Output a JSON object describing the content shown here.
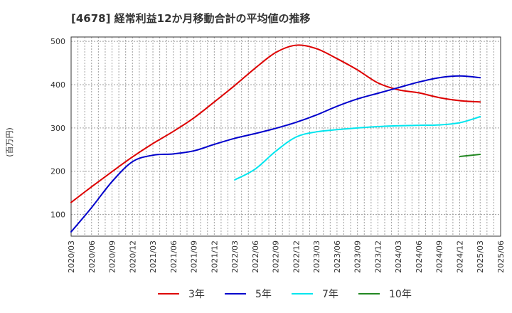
{
  "chart_data": {
    "type": "line",
    "title": "[4678]  経常利益12か月移動合計の平均値の推移",
    "ylabel": "(百万円)",
    "xlabel": "",
    "ylim": [
      50,
      510
    ],
    "yticks": [
      100,
      200,
      300,
      400,
      500
    ],
    "grid": true,
    "legend_position": "bottom",
    "x_tick_labels": [
      "2020/03",
      "2020/06",
      "2020/09",
      "2020/12",
      "2021/03",
      "2021/06",
      "2021/09",
      "2021/12",
      "2022/03",
      "2022/06",
      "2022/09",
      "2022/12",
      "2023/03",
      "2023/06",
      "2023/09",
      "2023/12",
      "2024/03",
      "2024/06",
      "2024/09",
      "2024/12",
      "2025/03",
      "2025/06"
    ],
    "series": [
      {
        "name": "3年",
        "color": "#dd0000",
        "values": [
          128,
          164,
          199,
          233,
          264,
          292,
          323,
          360,
          398,
          438,
          474,
          491,
          483,
          460,
          434,
          404,
          388,
          381,
          370,
          363,
          360
        ]
      },
      {
        "name": "5年",
        "color": "#0000cc",
        "values": [
          60,
          116,
          176,
          222,
          237,
          240,
          247,
          262,
          276,
          287,
          299,
          313,
          330,
          350,
          367,
          380,
          393,
          406,
          416,
          420,
          416
        ]
      },
      {
        "name": "7年",
        "color": "#00e5ee",
        "start_index": 8,
        "values": [
          180,
          205,
          246,
          279,
          291,
          296,
          300,
          303,
          305,
          306,
          307,
          312,
          326
        ]
      },
      {
        "name": "10年",
        "color": "#228822",
        "start_index": 19,
        "values": [
          234,
          239
        ]
      }
    ]
  }
}
